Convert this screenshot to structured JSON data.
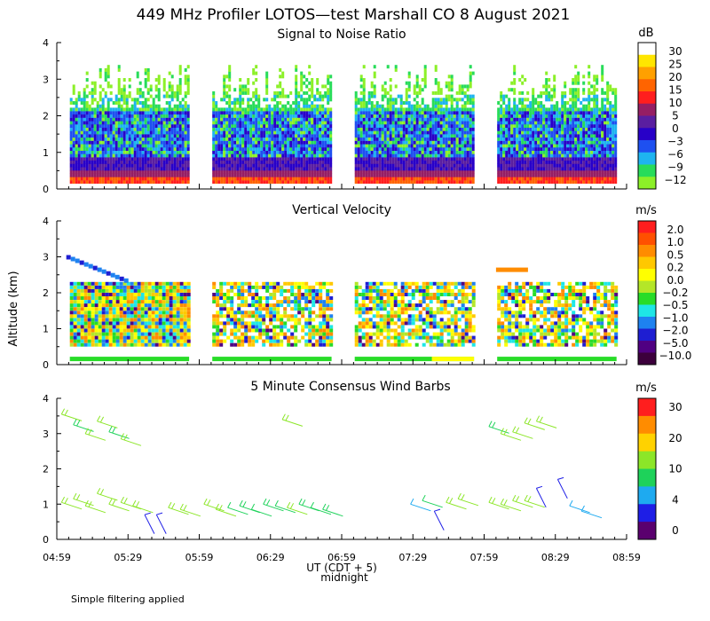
{
  "title": "449 MHz Profiler LOTOS—test Marshall CO  8 August 2021",
  "footer_note": "Simple filtering applied",
  "x_axis": {
    "label": "UT  (CDT + 5)",
    "midnight_label": "midnight",
    "ticks": [
      "04:59",
      "05:29",
      "05:59",
      "06:29",
      "06:59",
      "07:29",
      "07:59",
      "08:29",
      "08:59"
    ]
  },
  "y_axis": {
    "label": "Altitude (km)",
    "ticks": [
      "0",
      "1",
      "2",
      "3",
      "4"
    ],
    "ylim": [
      0,
      4
    ]
  },
  "colors": {
    "rainbow": [
      "#8cf028",
      "#28dc5a",
      "#1eb4f0",
      "#1e50f0",
      "#2800c8",
      "#5a1ea0",
      "#961e64",
      "#ff1e1e",
      "#ff6400",
      "#ffa000",
      "#ffe600",
      "#ffffff"
    ],
    "velocity": [
      "#3c003c",
      "#500082",
      "#1e1ed2",
      "#1e82f0",
      "#1ee6e6",
      "#28dc28",
      "#b4e628",
      "#ffff00",
      "#ffc800",
      "#ff8c00",
      "#ff5000",
      "#ff1e1e"
    ],
    "wind": [
      "#5a006e",
      "#1e1ee6",
      "#1eaaf0",
      "#1ed25a",
      "#8ce628",
      "#ffd200",
      "#ff8c00",
      "#ff1e1e"
    ]
  },
  "chart_data": [
    {
      "type": "heatmap",
      "title": "Signal to Noise Ratio",
      "units": "dB",
      "colorbar_ticks": [
        "30",
        "25",
        "20",
        "15",
        "10",
        "5",
        "0",
        "−3",
        "−6",
        "−9",
        "−12"
      ],
      "xlabel": "UT (CDT + 5)",
      "ylabel": "Altitude (km)",
      "ylim": [
        0,
        4
      ],
      "data_segments_ut": [
        [
          "05:00",
          "05:54"
        ],
        [
          "06:00",
          "06:54"
        ],
        [
          "07:00",
          "07:54"
        ],
        [
          "08:00",
          "08:54"
        ]
      ]
    },
    {
      "type": "heatmap",
      "title": "Vertical Velocity",
      "units": "m/s",
      "colorbar_ticks": [
        "2.0",
        "1.0",
        "0.5",
        "0.2",
        "0.0",
        "−0.2",
        "−0.5",
        "−1.0",
        "−2.0",
        "−5.0",
        "−10.0"
      ],
      "xlabel": "UT (CDT + 5)",
      "ylabel": "Altitude (km)",
      "ylim": [
        0,
        4
      ],
      "data_segments_ut": [
        [
          "05:00",
          "05:54"
        ],
        [
          "06:00",
          "06:54"
        ],
        [
          "07:00",
          "07:54"
        ],
        [
          "08:00",
          "08:54"
        ]
      ]
    },
    {
      "type": "scatter",
      "title": "5 Minute Consensus Wind Barbs",
      "units": "m/s",
      "colorbar_ticks": [
        "30",
        "20",
        "10",
        "4",
        "0"
      ],
      "xlabel": "UT (CDT + 5)",
      "ylabel": "Altitude (km)",
      "ylim": [
        0,
        4
      ],
      "barbs": [
        {
          "t": "05:01",
          "alt": 3.55,
          "speed": 9
        },
        {
          "t": "05:06",
          "alt": 3.25,
          "speed": 8
        },
        {
          "t": "05:11",
          "alt": 3.0,
          "speed": 11
        },
        {
          "t": "05:16",
          "alt": 3.35,
          "speed": 9
        },
        {
          "t": "05:21",
          "alt": 3.05,
          "speed": 8
        },
        {
          "t": "05:26",
          "alt": 2.85,
          "speed": 10
        },
        {
          "t": "05:01",
          "alt": 1.05,
          "speed": 12
        },
        {
          "t": "05:06",
          "alt": 1.15,
          "speed": 10
        },
        {
          "t": "05:11",
          "alt": 0.95,
          "speed": 11
        },
        {
          "t": "05:16",
          "alt": 1.3,
          "speed": 9
        },
        {
          "t": "05:21",
          "alt": 1.0,
          "speed": 10
        },
        {
          "t": "05:26",
          "alt": 1.05,
          "speed": 11
        },
        {
          "t": "05:31",
          "alt": 0.95,
          "speed": 10
        },
        {
          "t": "05:36",
          "alt": 0.7,
          "speed": 4
        },
        {
          "t": "05:41",
          "alt": 0.7,
          "speed": 3
        },
        {
          "t": "05:46",
          "alt": 0.9,
          "speed": 11
        },
        {
          "t": "05:51",
          "alt": 0.85,
          "speed": 10
        },
        {
          "t": "06:01",
          "alt": 1.0,
          "speed": 9
        },
        {
          "t": "06:06",
          "alt": 0.85,
          "speed": 10
        },
        {
          "t": "06:11",
          "alt": 0.9,
          "speed": 7
        },
        {
          "t": "06:16",
          "alt": 0.95,
          "speed": 8
        },
        {
          "t": "06:21",
          "alt": 0.85,
          "speed": 7
        },
        {
          "t": "06:26",
          "alt": 1.0,
          "speed": 8
        },
        {
          "t": "06:31",
          "alt": 0.95,
          "speed": 7
        },
        {
          "t": "06:36",
          "alt": 0.9,
          "speed": 9
        },
        {
          "t": "06:41",
          "alt": 1.0,
          "speed": 8
        },
        {
          "t": "06:46",
          "alt": 0.9,
          "speed": 7
        },
        {
          "t": "06:51",
          "alt": 0.85,
          "speed": 8
        },
        {
          "t": "06:34",
          "alt": 3.4,
          "speed": 9
        },
        {
          "t": "07:28",
          "alt": 1.0,
          "speed": 5
        },
        {
          "t": "07:33",
          "alt": 1.1,
          "speed": 7
        },
        {
          "t": "07:38",
          "alt": 0.8,
          "speed": 3
        },
        {
          "t": "07:43",
          "alt": 1.05,
          "speed": 9
        },
        {
          "t": "07:48",
          "alt": 1.15,
          "speed": 10
        },
        {
          "t": "08:01",
          "alt": 3.2,
          "speed": 8
        },
        {
          "t": "08:06",
          "alt": 3.0,
          "speed": 9
        },
        {
          "t": "08:11",
          "alt": 3.05,
          "speed": 10
        },
        {
          "t": "08:16",
          "alt": 3.3,
          "speed": 9
        },
        {
          "t": "08:21",
          "alt": 3.35,
          "speed": 10
        },
        {
          "t": "08:01",
          "alt": 1.05,
          "speed": 10
        },
        {
          "t": "08:06",
          "alt": 1.0,
          "speed": 9
        },
        {
          "t": "08:11",
          "alt": 1.1,
          "speed": 10
        },
        {
          "t": "08:16",
          "alt": 1.1,
          "speed": 9
        },
        {
          "t": "08:21",
          "alt": 1.45,
          "speed": 3
        },
        {
          "t": "08:30",
          "alt": 1.7,
          "speed": 3
        },
        {
          "t": "08:35",
          "alt": 0.95,
          "speed": 5
        },
        {
          "t": "08:40",
          "alt": 0.8,
          "speed": 6
        }
      ]
    }
  ]
}
